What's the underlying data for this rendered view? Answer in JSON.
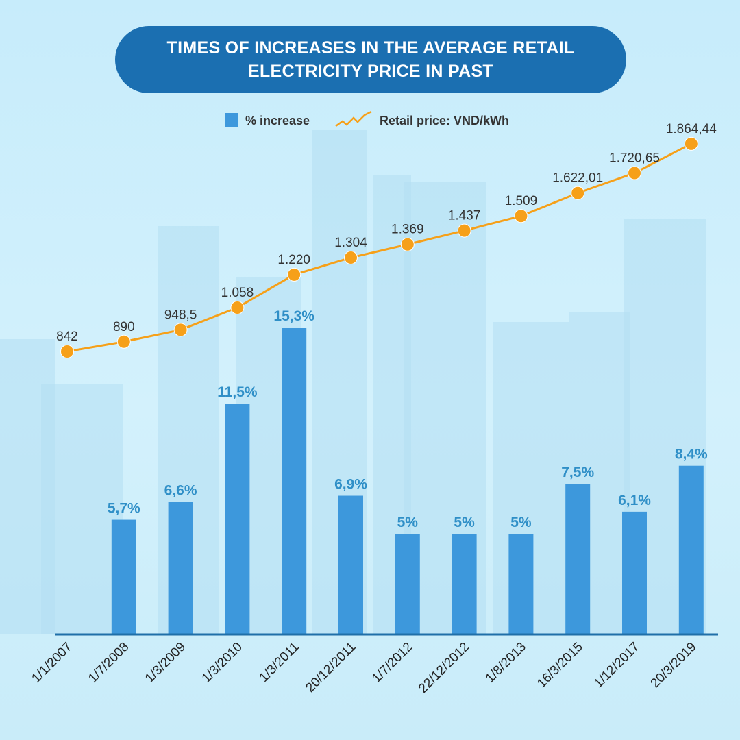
{
  "title": "TIMES OF INCREASES IN THE AVERAGE RETAIL ELECTRICITY PRICE IN PAST",
  "colors": {
    "title_bg": "#1b6fb1",
    "bar": "#3d98dc",
    "line": "#f6a019",
    "pct_label": "#2f8fc7",
    "axis": "#1f6fa8"
  },
  "chart_data": {
    "type": "bar",
    "categories": [
      "1/1/2007",
      "1/7/2008",
      "1/3/2009",
      "1/3/2010",
      "1/3/2011",
      "20/12/2011",
      "1/7/2012",
      "22/12/2012",
      "1/8/2013",
      "16/3/2015",
      "1/12/2017",
      "20/3/2019"
    ],
    "legend_position": "top",
    "grid": false,
    "series": [
      {
        "name": "% increase",
        "type": "bar",
        "values": [
          null,
          5.7,
          6.6,
          11.5,
          15.3,
          6.9,
          5,
          5,
          5,
          7.5,
          6.1,
          8.4
        ],
        "labels": [
          "",
          "5,7%",
          "6,6%",
          "11,5%",
          "15,3%",
          "6,9%",
          "5%",
          "5%",
          "5%",
          "7,5%",
          "6,1%",
          "8,4%"
        ]
      },
      {
        "name": "Retail price: VND/kWh",
        "type": "line",
        "values": [
          842,
          890,
          948.5,
          1058,
          1220,
          1304,
          1369,
          1437,
          1509,
          1622.01,
          1720.65,
          1864.44
        ],
        "labels": [
          "842",
          "890",
          "948,5",
          "1.058",
          "1.220",
          "1.304",
          "1.369",
          "1.437",
          "1.509",
          "1.622,01",
          "1.720,65",
          "1.864,44"
        ]
      }
    ]
  }
}
